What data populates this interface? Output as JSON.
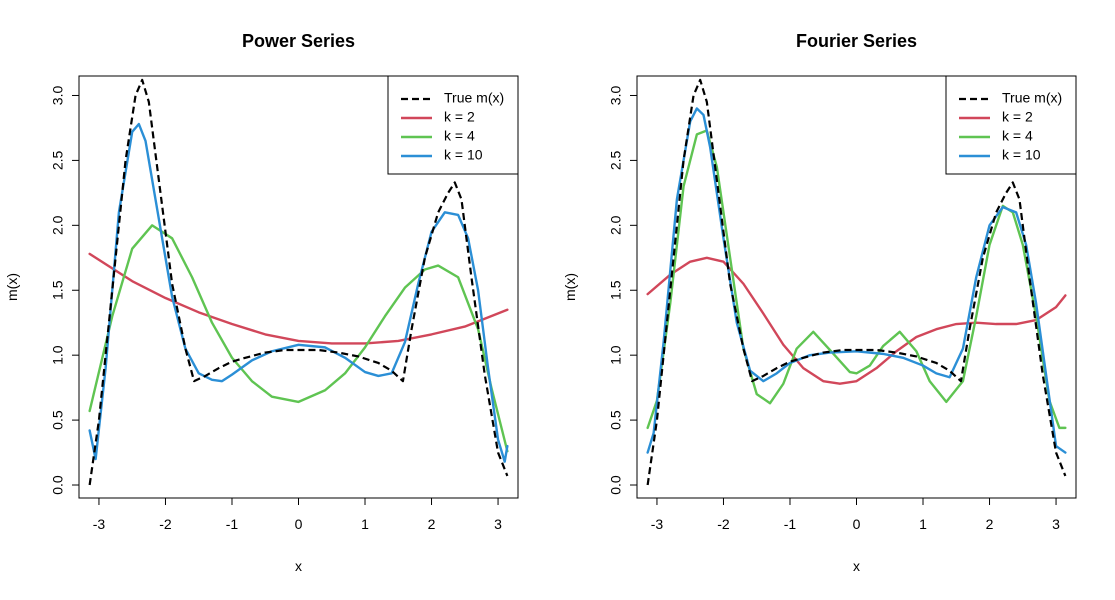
{
  "chart_data": [
    {
      "type": "line",
      "title": "Power Series",
      "xlabel": "x",
      "ylabel": "m(x)",
      "xlim": [
        -3.3,
        3.3
      ],
      "ylim": [
        -0.1,
        3.15
      ],
      "xticks": [
        -3,
        -2,
        -1,
        0,
        1,
        2,
        3
      ],
      "yticks": [
        0.0,
        0.5,
        1.0,
        1.5,
        2.0,
        2.5,
        3.0
      ],
      "xtick_labels": [
        "-3",
        "-2",
        "-1",
        "0",
        "1",
        "2",
        "3"
      ],
      "ytick_labels": [
        "0.0",
        "0.5",
        "1.0",
        "1.5",
        "2.0",
        "2.5",
        "3.0"
      ],
      "legend_position": "top-right",
      "series": [
        {
          "name": "True m(x)",
          "color": "#000000",
          "dashed": true,
          "x": [
            -3.14,
            -3.0,
            -2.8,
            -2.6,
            -2.45,
            -2.35,
            -2.25,
            -2.1,
            -1.9,
            -1.7,
            -1.57,
            -1.4,
            -1.2,
            -1.0,
            -0.8,
            -0.5,
            -0.2,
            0.0,
            0.3,
            0.6,
            0.9,
            1.2,
            1.4,
            1.57,
            1.7,
            1.9,
            2.1,
            2.25,
            2.35,
            2.45,
            2.6,
            2.8,
            3.0,
            3.14
          ],
          "y": [
            0.0,
            0.5,
            1.5,
            2.5,
            3.0,
            3.12,
            2.95,
            2.35,
            1.55,
            1.05,
            0.8,
            0.84,
            0.9,
            0.95,
            0.98,
            1.02,
            1.04,
            1.04,
            1.04,
            1.02,
            0.99,
            0.94,
            0.88,
            0.8,
            1.2,
            1.75,
            2.1,
            2.25,
            2.33,
            2.2,
            1.6,
            0.85,
            0.25,
            0.07
          ]
        },
        {
          "name": "k = 2",
          "color": "#d1475a",
          "x": [
            -3.14,
            -2.5,
            -2.0,
            -1.5,
            -1.0,
            -0.5,
            0.0,
            0.5,
            1.0,
            1.5,
            2.0,
            2.5,
            3.14
          ],
          "y": [
            1.78,
            1.57,
            1.44,
            1.33,
            1.24,
            1.16,
            1.11,
            1.09,
            1.09,
            1.11,
            1.16,
            1.22,
            1.35
          ]
        },
        {
          "name": "k = 4",
          "color": "#5fc452",
          "x": [
            -3.14,
            -2.8,
            -2.5,
            -2.2,
            -1.9,
            -1.6,
            -1.3,
            -1.0,
            -0.7,
            -0.4,
            0.0,
            0.4,
            0.7,
            1.0,
            1.3,
            1.6,
            1.9,
            2.1,
            2.4,
            2.7,
            2.9,
            3.14
          ],
          "y": [
            0.57,
            1.3,
            1.82,
            2.0,
            1.9,
            1.6,
            1.25,
            0.98,
            0.8,
            0.68,
            0.64,
            0.73,
            0.86,
            1.06,
            1.3,
            1.52,
            1.66,
            1.69,
            1.6,
            1.2,
            0.75,
            0.26
          ]
        },
        {
          "name": "k = 10",
          "color": "#2b8fd6",
          "x": [
            -3.14,
            -3.05,
            -2.9,
            -2.7,
            -2.5,
            -2.4,
            -2.3,
            -2.1,
            -1.9,
            -1.7,
            -1.5,
            -1.3,
            -1.15,
            -1.0,
            -0.7,
            -0.4,
            0.0,
            0.4,
            0.7,
            1.0,
            1.2,
            1.4,
            1.6,
            1.8,
            2.0,
            2.2,
            2.4,
            2.55,
            2.7,
            2.85,
            3.0,
            3.1,
            3.14
          ],
          "y": [
            0.42,
            0.2,
            0.9,
            2.1,
            2.72,
            2.78,
            2.65,
            2.05,
            1.45,
            1.05,
            0.86,
            0.81,
            0.8,
            0.85,
            0.96,
            1.03,
            1.08,
            1.06,
            0.98,
            0.87,
            0.84,
            0.86,
            1.1,
            1.55,
            1.95,
            2.1,
            2.08,
            1.9,
            1.5,
            0.9,
            0.35,
            0.18,
            0.3
          ]
        }
      ]
    },
    {
      "type": "line",
      "title": "Fourier Series",
      "xlabel": "x",
      "ylabel": "m(x)",
      "xlim": [
        -3.3,
        3.3
      ],
      "ylim": [
        -0.1,
        3.15
      ],
      "xticks": [
        -3,
        -2,
        -1,
        0,
        1,
        2,
        3
      ],
      "yticks": [
        0.0,
        0.5,
        1.0,
        1.5,
        2.0,
        2.5,
        3.0
      ],
      "xtick_labels": [
        "-3",
        "-2",
        "-1",
        "0",
        "1",
        "2",
        "3"
      ],
      "ytick_labels": [
        "0.0",
        "0.5",
        "1.0",
        "1.5",
        "2.0",
        "2.5",
        "3.0"
      ],
      "legend_position": "top-right",
      "series": [
        {
          "name": "True m(x)",
          "color": "#000000",
          "dashed": true,
          "x": [
            -3.14,
            -3.0,
            -2.8,
            -2.6,
            -2.45,
            -2.35,
            -2.25,
            -2.1,
            -1.9,
            -1.7,
            -1.57,
            -1.4,
            -1.2,
            -1.0,
            -0.8,
            -0.5,
            -0.2,
            0.0,
            0.3,
            0.6,
            0.9,
            1.2,
            1.4,
            1.57,
            1.7,
            1.9,
            2.1,
            2.25,
            2.35,
            2.45,
            2.6,
            2.8,
            3.0,
            3.14
          ],
          "y": [
            0.0,
            0.5,
            1.5,
            2.5,
            3.0,
            3.12,
            2.95,
            2.35,
            1.55,
            1.05,
            0.8,
            0.84,
            0.9,
            0.95,
            0.98,
            1.02,
            1.04,
            1.04,
            1.04,
            1.02,
            0.99,
            0.94,
            0.88,
            0.8,
            1.2,
            1.75,
            2.1,
            2.25,
            2.33,
            2.2,
            1.6,
            0.85,
            0.25,
            0.07
          ]
        },
        {
          "name": "k = 2",
          "color": "#d1475a",
          "x": [
            -3.14,
            -2.8,
            -2.5,
            -2.25,
            -2.0,
            -1.7,
            -1.4,
            -1.1,
            -0.8,
            -0.5,
            -0.25,
            0.0,
            0.3,
            0.6,
            0.9,
            1.2,
            1.5,
            1.8,
            2.1,
            2.4,
            2.7,
            3.0,
            3.14
          ],
          "y": [
            1.47,
            1.62,
            1.72,
            1.75,
            1.72,
            1.55,
            1.32,
            1.08,
            0.9,
            0.8,
            0.78,
            0.8,
            0.9,
            1.03,
            1.14,
            1.2,
            1.24,
            1.25,
            1.24,
            1.24,
            1.27,
            1.37,
            1.46
          ]
        },
        {
          "name": "k = 4",
          "color": "#5fc452",
          "x": [
            -3.14,
            -3.0,
            -2.8,
            -2.6,
            -2.4,
            -2.25,
            -2.1,
            -1.9,
            -1.7,
            -1.5,
            -1.3,
            -1.1,
            -0.9,
            -0.65,
            -0.4,
            -0.1,
            0.0,
            0.2,
            0.4,
            0.65,
            0.9,
            1.1,
            1.35,
            1.6,
            1.8,
            2.0,
            2.2,
            2.35,
            2.5,
            2.7,
            2.9,
            3.05,
            3.14
          ],
          "y": [
            0.44,
            0.65,
            1.4,
            2.3,
            2.7,
            2.73,
            2.45,
            1.75,
            1.05,
            0.7,
            0.63,
            0.78,
            1.05,
            1.18,
            1.04,
            0.87,
            0.86,
            0.92,
            1.07,
            1.18,
            1.03,
            0.8,
            0.64,
            0.8,
            1.3,
            1.85,
            2.15,
            2.1,
            1.85,
            1.3,
            0.65,
            0.44,
            0.44
          ]
        },
        {
          "name": "k = 10",
          "color": "#2b8fd6",
          "x": [
            -3.14,
            -3.05,
            -2.9,
            -2.7,
            -2.5,
            -2.4,
            -2.3,
            -2.2,
            -2.0,
            -1.8,
            -1.6,
            -1.4,
            -1.2,
            -1.0,
            -0.7,
            -0.4,
            0.0,
            0.4,
            0.7,
            1.0,
            1.2,
            1.4,
            1.6,
            1.8,
            2.0,
            2.2,
            2.4,
            2.55,
            2.7,
            2.85,
            3.0,
            3.14
          ],
          "y": [
            0.25,
            0.4,
            1.1,
            2.2,
            2.8,
            2.9,
            2.85,
            2.6,
            1.9,
            1.25,
            0.88,
            0.8,
            0.86,
            0.94,
            1.0,
            1.02,
            1.03,
            1.01,
            0.98,
            0.92,
            0.86,
            0.83,
            1.05,
            1.6,
            2.0,
            2.14,
            2.1,
            1.85,
            1.4,
            0.85,
            0.3,
            0.25
          ]
        }
      ]
    }
  ]
}
